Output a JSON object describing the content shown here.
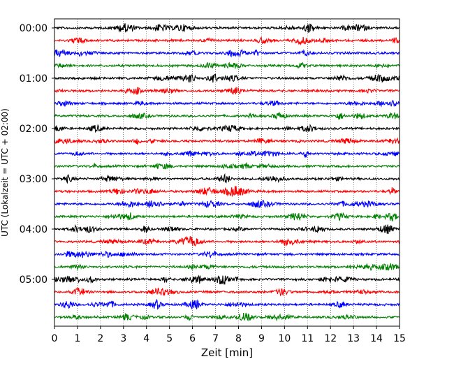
{
  "chart_data": {
    "type": "line",
    "title": "",
    "xlabel": "Zeit  [min]",
    "ylabel": "UTC (Lokalzeit = UTC + 02:00)",
    "xlim": [
      0,
      15
    ],
    "x_ticks": [
      "0",
      "1",
      "2",
      "3",
      "4",
      "5",
      "6",
      "7",
      "8",
      "9",
      "10",
      "11",
      "12",
      "13",
      "14",
      "15"
    ],
    "y_ticks": [
      "00:00",
      "01:00",
      "02:00",
      "03:00",
      "04:00",
      "05:00"
    ],
    "grid": "vertical dotted lines at each minute",
    "trace_minutes": 15,
    "trace_colors": [
      "#000000",
      "#ff0000",
      "#0000ff",
      "#008000"
    ],
    "traces": [
      {
        "start": "00:00"
      },
      {
        "start": "00:15"
      },
      {
        "start": "00:30"
      },
      {
        "start": "00:45"
      },
      {
        "start": "01:00"
      },
      {
        "start": "01:15"
      },
      {
        "start": "01:30"
      },
      {
        "start": "01:45"
      },
      {
        "start": "02:00"
      },
      {
        "start": "02:15"
      },
      {
        "start": "02:30"
      },
      {
        "start": "02:45"
      },
      {
        "start": "03:00"
      },
      {
        "start": "03:15"
      },
      {
        "start": "03:30"
      },
      {
        "start": "03:45"
      },
      {
        "start": "04:00"
      },
      {
        "start": "04:15"
      },
      {
        "start": "04:30"
      },
      {
        "start": "04:45"
      },
      {
        "start": "05:00"
      },
      {
        "start": "05:15"
      },
      {
        "start": "05:30"
      },
      {
        "start": "05:45"
      }
    ]
  }
}
